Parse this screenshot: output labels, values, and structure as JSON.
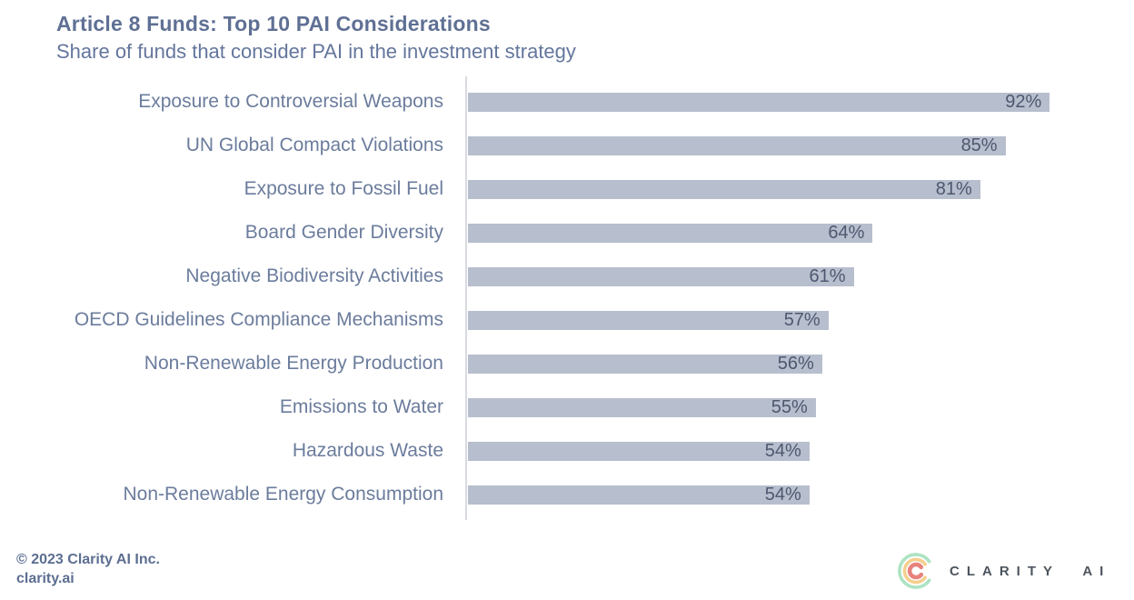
{
  "header": {
    "title": "Article 8 Funds: Top 10 PAI Considerations",
    "subtitle": "Share of funds that consider PAI in the investment strategy"
  },
  "chart_data": {
    "type": "bar",
    "orientation": "horizontal",
    "title": "Article 8 Funds: Top 10 PAI Considerations",
    "subtitle": "Share of funds that consider PAI in the investment strategy",
    "categories": [
      "Exposure to Controversial Weapons",
      "UN Global Compact Violations",
      "Exposure to Fossil Fuel",
      "Board Gender Diversity",
      "Negative Biodiversity Activities",
      "OECD Guidelines Compliance Mechanisms",
      "Non-Renewable Energy Production",
      "Emissions to Water",
      "Hazardous Waste",
      "Non-Renewable Energy Consumption"
    ],
    "values": [
      92,
      85,
      81,
      64,
      61,
      57,
      56,
      55,
      54,
      54
    ],
    "value_suffix": "%",
    "xlim": [
      0,
      100
    ],
    "grid": false,
    "legend": false,
    "bar_color": "#b7becd",
    "value_label_color": "#4d5870",
    "category_label_color": "#6b7c9c",
    "axis_line_color": "#d8dbe1"
  },
  "footer": {
    "copyright": "© 2023 Clarity AI Inc.",
    "website": "clarity.ai"
  },
  "logo": {
    "text": "CLARITY AI",
    "icon": "clarity-concentric-c-icon",
    "colors": {
      "outer_arc": "#aee3c3",
      "middle_arc": "#f6cf8e",
      "inner_arc": "#e8827c",
      "text": "#4d565f"
    }
  }
}
